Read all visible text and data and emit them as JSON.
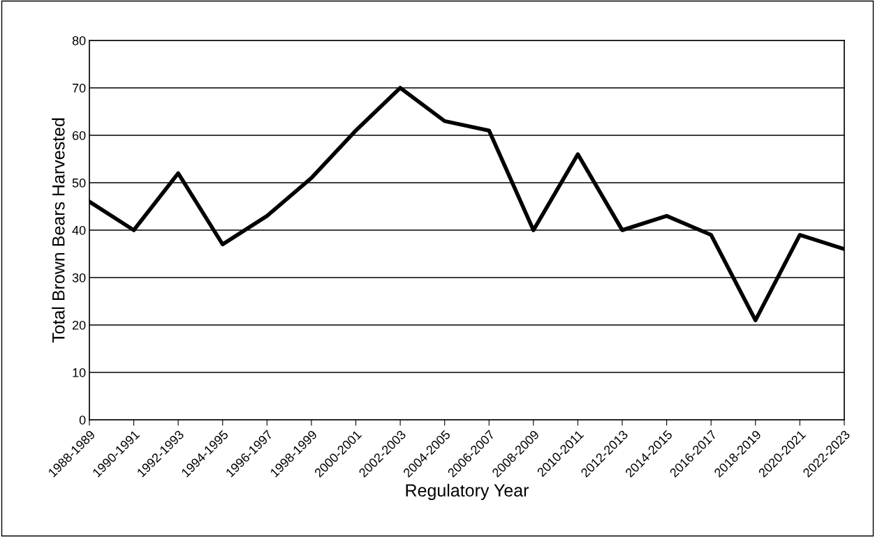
{
  "chart_data": {
    "type": "line",
    "xlabel": "Regulatory Year",
    "ylabel": "Total Brown Bears Harvested",
    "categories": [
      "1988-1989",
      "1990-1991",
      "1992-1993",
      "1994-1995",
      "1996-1997",
      "1998-1999",
      "2000-2001",
      "2002-2003",
      "2004-2005",
      "2006-2007",
      "2008-2009",
      "2010-2011",
      "2012-2013",
      "2014-2015",
      "2016-2017",
      "2018-2019",
      "2020-2021",
      "2022-2023"
    ],
    "series": [
      {
        "color": "#000000",
        "values": [
          46,
          40,
          52,
          37,
          43,
          51,
          61,
          70,
          63,
          61,
          40,
          56,
          40,
          43,
          39,
          21,
          39,
          36
        ]
      }
    ],
    "ylim": [
      0,
      80
    ],
    "yticks": [
      0,
      10,
      20,
      30,
      40,
      50,
      60,
      70,
      80
    ],
    "grid": "y",
    "marker": "none",
    "line_style": "solid"
  }
}
